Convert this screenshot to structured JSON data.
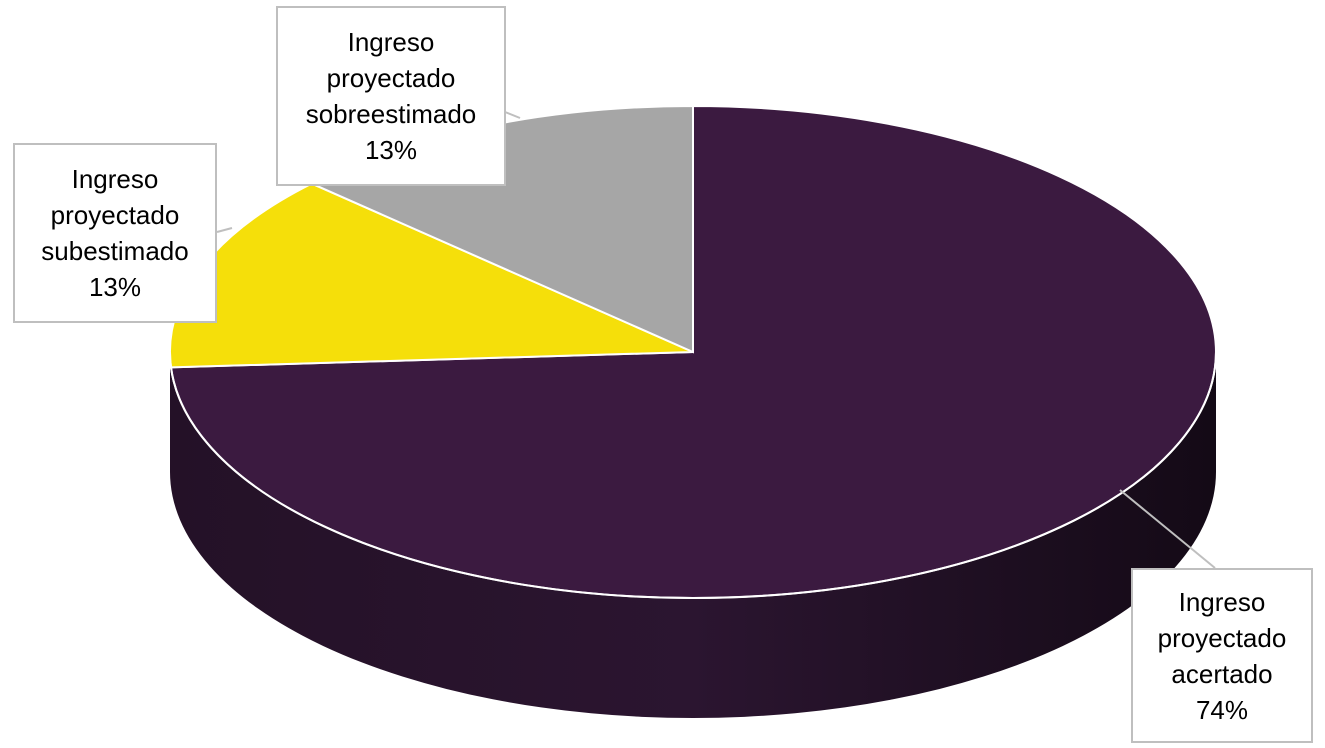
{
  "chart_data": {
    "type": "pie",
    "title": "",
    "categories": [
      "Ingreso proyectado acertado",
      "Ingreso proyectado subestimado",
      "Ingreso proyectado sobreestimado"
    ],
    "values": [
      74,
      13,
      13
    ],
    "unit": "%",
    "colors": [
      "#3b1a40",
      "#f5df0a",
      "#a6a6a6"
    ],
    "labels": [
      {
        "lines": [
          "Ingreso",
          "proyectado",
          "acertado"
        ],
        "value": "74%"
      },
      {
        "lines": [
          "Ingreso",
          "proyectado",
          "subestimado"
        ],
        "value": "13%"
      },
      {
        "lines": [
          "Ingreso",
          "proyectado",
          "sobreestimado"
        ],
        "value": "13%"
      }
    ],
    "style": "3d",
    "legend": "none"
  }
}
